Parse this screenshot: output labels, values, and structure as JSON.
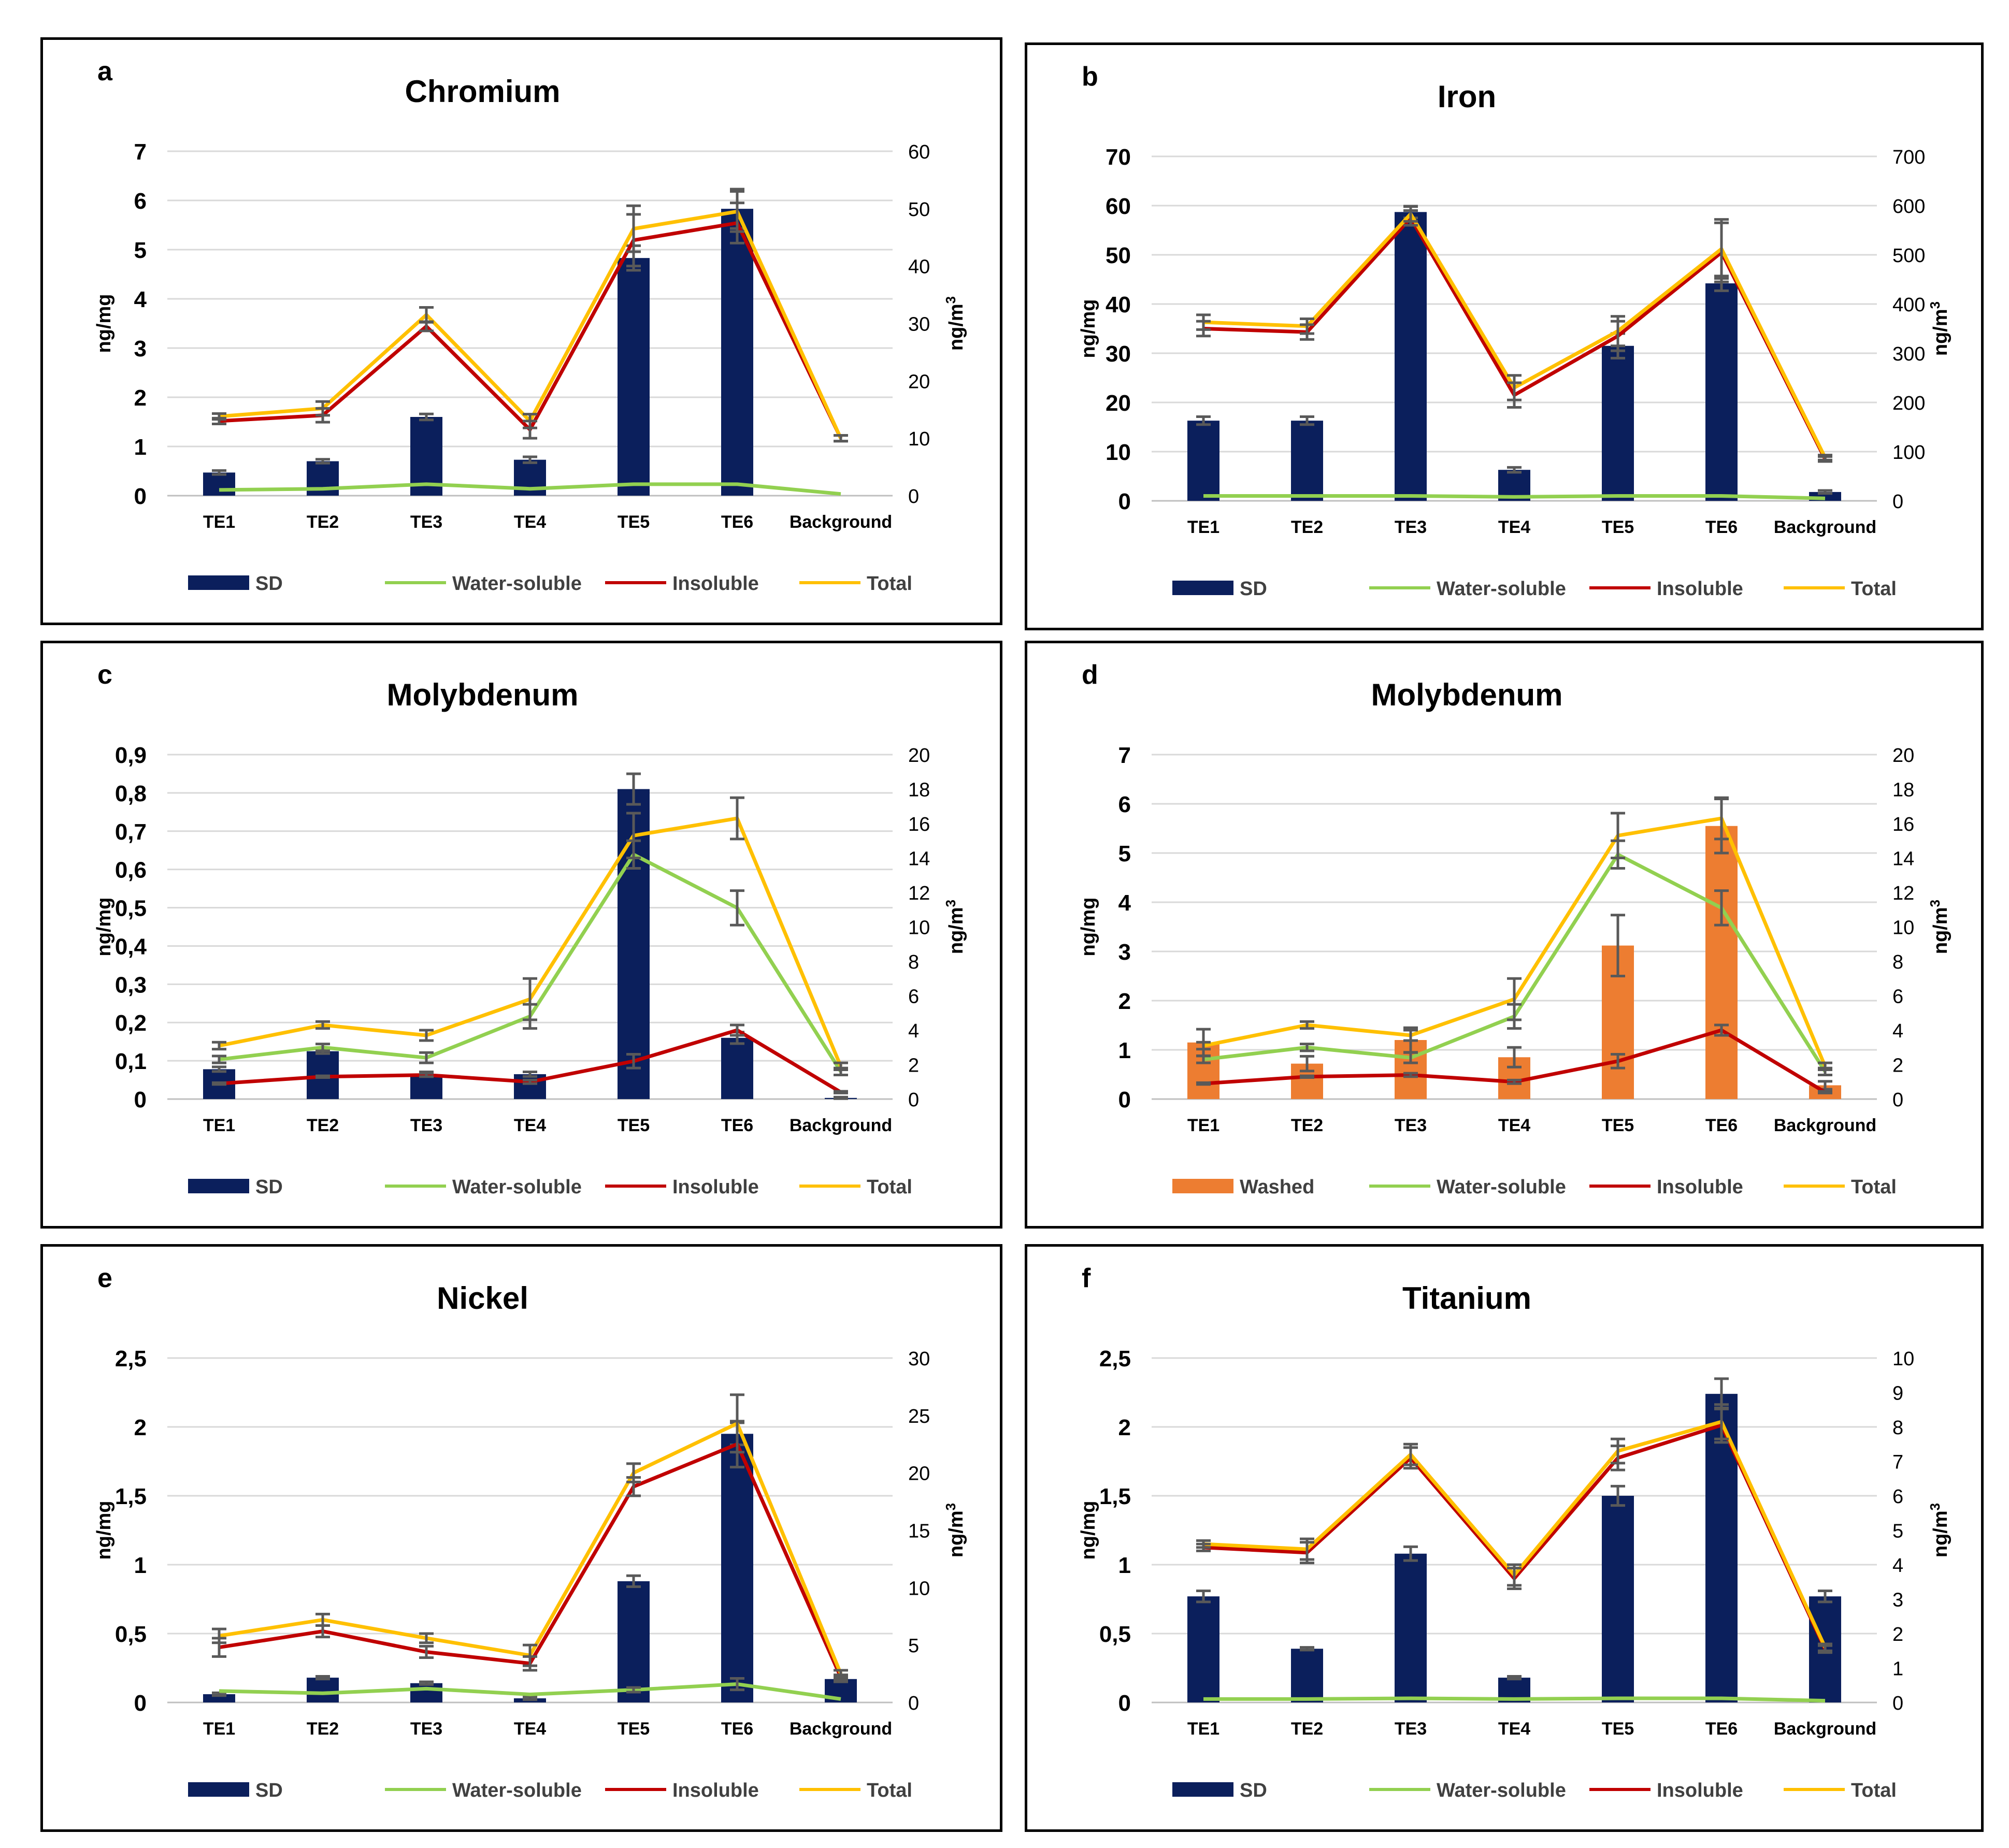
{
  "colors": {
    "navy": "#0b1f5c",
    "orange": "#ed7d31",
    "green": "#92d050",
    "red": "#c00000",
    "gold": "#ffc000",
    "grid": "#d9d9d9",
    "errbar": "#595959"
  },
  "chart_data": [
    {
      "id": "a",
      "panel_label": "a",
      "type": "bar+line",
      "title": "Chromium",
      "categories": [
        "TE1",
        "TE2",
        "TE3",
        "TE4",
        "TE5",
        "TE6",
        "Background"
      ],
      "ylabel_left": "ng/mg",
      "ylabel_right": "ng/m",
      "ylabel_right_sup": "3",
      "left_axis": {
        "min": 0,
        "max": 7,
        "ticks": [
          "0",
          "1",
          "2",
          "3",
          "4",
          "5",
          "6",
          "7"
        ]
      },
      "right_axis": {
        "min": 0,
        "max": 60,
        "ticks": [
          "0",
          "10",
          "20",
          "30",
          "40",
          "50",
          "60"
        ]
      },
      "bars": {
        "name": "SD",
        "values": [
          0.47,
          0.7,
          1.6,
          0.73,
          4.83,
          5.83,
          null
        ],
        "err": [
          0.04,
          0.04,
          0.06,
          0.06,
          0.25,
          0.4,
          null
        ]
      },
      "lines": [
        {
          "name": "Water-soluble",
          "color": "green",
          "values": [
            1.0,
            1.2,
            2.0,
            1.2,
            2.0,
            2.0,
            0.3
          ],
          "err": [
            0,
            0,
            0,
            0,
            0,
            0,
            0
          ]
        },
        {
          "name": "Insoluble",
          "color": "red",
          "values": [
            13.0,
            14.0,
            29.5,
            11.5,
            44.5,
            47.5,
            10.0
          ],
          "err": [
            0.5,
            1.2,
            0.8,
            1.5,
            4.5,
            3.5,
            0.5
          ]
        },
        {
          "name": "Total",
          "color": "gold",
          "values": [
            13.8,
            15.2,
            31.5,
            13.0,
            46.5,
            49.5,
            10.0
          ],
          "err": [
            0.5,
            1.2,
            1.3,
            1.2,
            4.0,
            3.5,
            0.5
          ]
        }
      ],
      "legend": [
        "SD",
        "Water-soluble",
        "Insoluble",
        "Total"
      ]
    },
    {
      "id": "b",
      "panel_label": "b",
      "type": "bar+line",
      "title": "Iron",
      "categories": [
        "TE1",
        "TE2",
        "TE3",
        "TE4",
        "TE5",
        "TE6",
        "Background"
      ],
      "ylabel_left": "ng/mg",
      "ylabel_right": "ng/m",
      "ylabel_right_sup": "3",
      "left_axis": {
        "min": 0,
        "max": 70,
        "ticks": [
          "0",
          "10",
          "20",
          "30",
          "40",
          "50",
          "60",
          "70"
        ]
      },
      "right_axis": {
        "min": 0,
        "max": 700,
        "ticks": [
          "0",
          "100",
          "200",
          "300",
          "400",
          "500",
          "600",
          "700"
        ]
      },
      "bars": {
        "name": "SD",
        "values": [
          16.3,
          16.3,
          58.7,
          6.3,
          31.5,
          44.2,
          1.8
        ],
        "err": [
          0.8,
          0.8,
          1.2,
          0.5,
          2.5,
          1.5,
          0.3
        ]
      },
      "lines": [
        {
          "name": "Water-soluble",
          "color": "green",
          "values": [
            10,
            10,
            10,
            8,
            10,
            10,
            5
          ],
          "err": [
            0,
            0,
            0,
            0,
            0,
            0,
            0
          ]
        },
        {
          "name": "Insoluble",
          "color": "red",
          "values": [
            350,
            343,
            575,
            215,
            335,
            505,
            85
          ],
          "err": [
            15,
            15,
            15,
            25,
            30,
            60,
            5
          ]
        },
        {
          "name": "Total",
          "color": "gold",
          "values": [
            363,
            355,
            583,
            230,
            345,
            512,
            88
          ],
          "err": [
            15,
            15,
            15,
            25,
            30,
            60,
            5
          ]
        }
      ],
      "legend": [
        "SD",
        "Water-soluble",
        "Insoluble",
        "Total"
      ]
    },
    {
      "id": "c",
      "panel_label": "c",
      "type": "bar+line",
      "title": "Molybdenum",
      "categories": [
        "TE1",
        "TE2",
        "TE3",
        "TE4",
        "TE5",
        "TE6",
        "Background"
      ],
      "ylabel_left": "ng/mg",
      "ylabel_right": "ng/m",
      "ylabel_right_sup": "3",
      "left_axis": {
        "min": 0,
        "max": 0.9,
        "ticks": [
          "0",
          "0,1",
          "0,2",
          "0,3",
          "0,4",
          "0,5",
          "0,6",
          "0,7",
          "0,8",
          "0,9"
        ]
      },
      "right_axis": {
        "min": 0,
        "max": 20,
        "ticks": [
          "0",
          "2",
          "4",
          "6",
          "8",
          "10",
          "12",
          "14",
          "16",
          "18",
          "20"
        ]
      },
      "bars": {
        "name": "SD",
        "values": [
          0.078,
          0.125,
          0.065,
          0.065,
          0.81,
          0.16,
          0.003
        ],
        "err": [
          0.006,
          0.006,
          0.006,
          0.006,
          0.04,
          0.015,
          0.002
        ]
      },
      "lines": [
        {
          "name": "Water-soluble",
          "color": "green",
          "values": [
            2.3,
            3.0,
            2.4,
            4.8,
            14.2,
            11.1,
            1.6
          ],
          "err": [
            0.2,
            0.2,
            0.3,
            0.7,
            0.8,
            1.0,
            0.2
          ]
        },
        {
          "name": "Insoluble",
          "color": "red",
          "values": [
            0.9,
            1.3,
            1.4,
            1.0,
            2.2,
            4.0,
            0.4
          ],
          "err": [
            0.05,
            0.05,
            0.1,
            0.1,
            0.4,
            0.3,
            0.05
          ]
        },
        {
          "name": "Total",
          "color": "gold",
          "values": [
            3.1,
            4.3,
            3.7,
            5.8,
            15.3,
            16.3,
            1.9
          ],
          "err": [
            0.2,
            0.2,
            0.3,
            1.2,
            1.3,
            1.2,
            0.2
          ]
        }
      ],
      "legend": [
        "SD",
        "Water-soluble",
        "Insoluble",
        "Total"
      ]
    },
    {
      "id": "d",
      "panel_label": "d",
      "type": "bar+line",
      "title": "Molybdenum",
      "categories": [
        "TE1",
        "TE2",
        "TE3",
        "TE4",
        "TE5",
        "TE6",
        "Background"
      ],
      "ylabel_left": "ng/mg",
      "ylabel_right": "ng/m",
      "ylabel_right_sup": "3",
      "left_axis": {
        "min": 0,
        "max": 7,
        "ticks": [
          "0",
          "1",
          "2",
          "3",
          "4",
          "5",
          "6",
          "7"
        ]
      },
      "right_axis": {
        "min": 0,
        "max": 20,
        "ticks": [
          "0",
          "2",
          "4",
          "6",
          "8",
          "10",
          "12",
          "14",
          "16",
          "18",
          "20"
        ]
      },
      "bars": {
        "name": "Washed",
        "values": [
          1.15,
          0.72,
          1.2,
          0.85,
          3.12,
          5.55,
          0.28
        ],
        "err": [
          0.27,
          0.15,
          0.25,
          0.2,
          0.62,
          0.55,
          0.08
        ]
      },
      "lines": [
        {
          "name": "Water-soluble",
          "color": "green",
          "values": [
            2.3,
            3.0,
            2.4,
            4.8,
            14.2,
            11.1,
            1.6
          ],
          "err": [
            0.2,
            0.2,
            0.3,
            0.7,
            0.8,
            1.0,
            0.2
          ]
        },
        {
          "name": "Insoluble",
          "color": "red",
          "values": [
            0.9,
            1.3,
            1.4,
            1.0,
            2.2,
            4.0,
            0.4
          ],
          "err": [
            0.05,
            0.05,
            0.1,
            0.1,
            0.4,
            0.3,
            0.05
          ]
        },
        {
          "name": "Total",
          "color": "gold",
          "values": [
            3.1,
            4.3,
            3.7,
            5.8,
            15.3,
            16.3,
            1.9
          ],
          "err": [
            0.2,
            0.2,
            0.3,
            1.2,
            1.3,
            1.2,
            0.2
          ]
        }
      ],
      "legend": [
        "Washed",
        "Water-soluble",
        "Insoluble",
        "Total"
      ]
    },
    {
      "id": "e",
      "panel_label": "e",
      "type": "bar+line",
      "title": "Nickel",
      "categories": [
        "TE1",
        "TE2",
        "TE3",
        "TE4",
        "TE5",
        "TE6",
        "Background"
      ],
      "ylabel_left": "ng/mg",
      "ylabel_right": "ng/m",
      "ylabel_right_sup": "3",
      "left_axis": {
        "min": 0,
        "max": 2.5,
        "ticks": [
          "0",
          "0,5",
          "1",
          "1,5",
          "2",
          "2,5"
        ]
      },
      "right_axis": {
        "min": 0,
        "max": 30,
        "ticks": [
          "0",
          "5",
          "10",
          "15",
          "20",
          "25",
          "30"
        ]
      },
      "bars": {
        "name": "SD",
        "values": [
          0.06,
          0.18,
          0.14,
          0.03,
          0.88,
          1.95,
          0.17
        ],
        "err": [
          0.01,
          0.01,
          0.01,
          0.01,
          0.04,
          0.08,
          0.02
        ]
      },
      "lines": [
        {
          "name": "Water-soluble",
          "color": "green",
          "values": [
            1.0,
            0.8,
            1.2,
            0.7,
            1.1,
            1.6,
            0.3
          ],
          "err": [
            0,
            0,
            0,
            0,
            0.2,
            0.5,
            0
          ]
        },
        {
          "name": "Insoluble",
          "color": "red",
          "values": [
            4.8,
            6.2,
            4.4,
            3.4,
            18.8,
            22.5,
            2.2
          ],
          "err": [
            0.8,
            0.5,
            0.5,
            0.6,
            0.8,
            2.0,
            0.2
          ]
        },
        {
          "name": "Total",
          "color": "gold",
          "values": [
            5.8,
            7.2,
            5.6,
            4.1,
            20.0,
            24.3,
            2.5
          ],
          "err": [
            0.6,
            0.5,
            0.4,
            0.9,
            0.8,
            2.5,
            0.3
          ]
        }
      ],
      "legend": [
        "SD",
        "Water-soluble",
        "Insoluble",
        "Total"
      ]
    },
    {
      "id": "f",
      "panel_label": "f",
      "type": "bar+line",
      "title": "Titanium",
      "categories": [
        "TE1",
        "TE2",
        "TE3",
        "TE4",
        "TE5",
        "TE6",
        "Background"
      ],
      "ylabel_left": "ng/mg",
      "ylabel_right": "ng/m",
      "ylabel_right_sup": "3",
      "left_axis": {
        "min": 0,
        "max": 2.5,
        "ticks": [
          "0",
          "0,5",
          "1",
          "1,5",
          "2",
          "2,5"
        ]
      },
      "right_axis": {
        "min": 0,
        "max": 10,
        "ticks": [
          "0",
          "1",
          "2",
          "3",
          "4",
          "5",
          "6",
          "7",
          "8",
          "9",
          "10"
        ]
      },
      "bars": {
        "name": "SD",
        "values": [
          0.77,
          0.39,
          1.08,
          0.18,
          1.5,
          2.24,
          0.77
        ],
        "err": [
          0.04,
          0.01,
          0.05,
          0.01,
          0.07,
          0.11,
          0.04
        ]
      },
      "lines": [
        {
          "name": "Water-soluble",
          "color": "green",
          "values": [
            0.1,
            0.1,
            0.12,
            0.1,
            0.12,
            0.12,
            0.05
          ],
          "err": [
            0,
            0,
            0,
            0,
            0,
            0,
            0
          ]
        },
        {
          "name": "Insoluble",
          "color": "red",
          "values": [
            4.5,
            4.35,
            7.1,
            3.6,
            7.1,
            8.05,
            1.55
          ],
          "err": [
            0.1,
            0.3,
            0.3,
            0.3,
            0.35,
            0.5,
            0.1
          ]
        },
        {
          "name": "Total",
          "color": "gold",
          "values": [
            4.6,
            4.45,
            7.2,
            3.7,
            7.3,
            8.15,
            1.6
          ],
          "err": [
            0.1,
            0.3,
            0.3,
            0.3,
            0.35,
            0.5,
            0.1
          ]
        }
      ],
      "legend": [
        "SD",
        "Water-soluble",
        "Insoluble",
        "Total"
      ]
    }
  ]
}
